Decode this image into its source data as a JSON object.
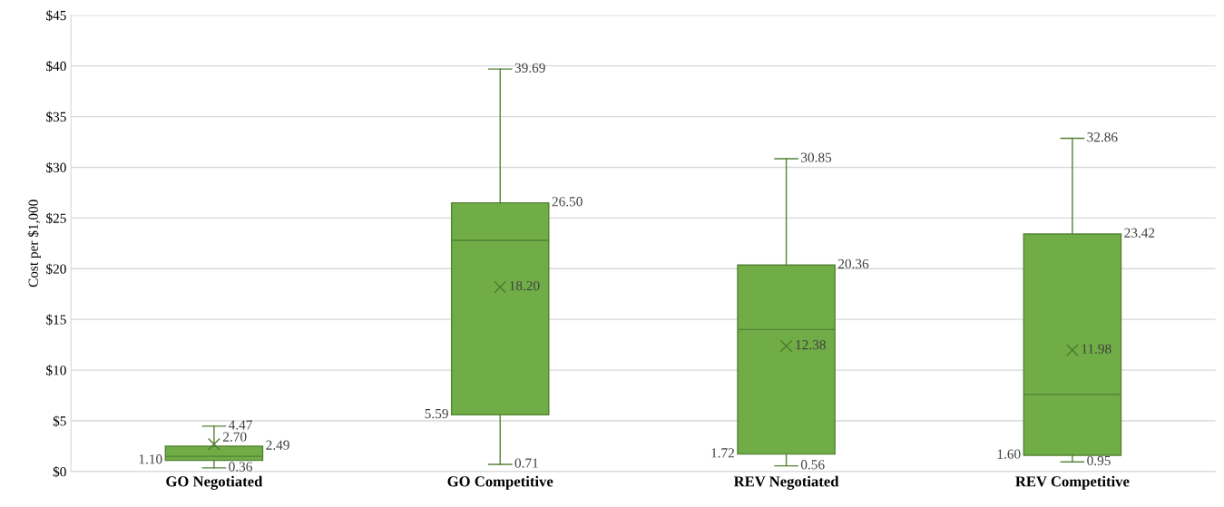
{
  "chart_data": {
    "type": "box",
    "ylabel": "Cost per $1,000",
    "categories": [
      "GO Negotiated",
      "GO Competitive",
      "REV Negotiated",
      "REV Competitive"
    ],
    "boxes": [
      {
        "low": 0.36,
        "q1": 1.1,
        "median": 1.5,
        "q3": 2.49,
        "high": 4.47,
        "mean": 2.7
      },
      {
        "low": 0.71,
        "q1": 5.59,
        "median": 22.8,
        "q3": 26.5,
        "high": 39.69,
        "mean": 18.2
      },
      {
        "low": 0.56,
        "q1": 1.72,
        "median": 14.0,
        "q3": 20.36,
        "high": 30.85,
        "mean": 12.38
      },
      {
        "low": 0.95,
        "q1": 1.6,
        "median": 7.6,
        "q3": 23.42,
        "high": 32.86,
        "mean": 11.98
      }
    ],
    "color": "#70ad47",
    "grid": "y",
    "annotations": [
      "4.47",
      "2.49",
      "2.70",
      "1.10",
      "0.36",
      "39.69",
      "26.50",
      "18.20",
      "5.59",
      "0.71",
      "30.85",
      "20.36",
      "12.38",
      "1.72",
      "0.56",
      "32.86",
      "23.42",
      "11.98",
      "1.60",
      "0.95"
    ],
    "ylim": [
      0,
      45
    ],
    "yticks": [
      {
        "value": 0,
        "label": "$0"
      },
      {
        "value": 5,
        "label": "$5"
      },
      {
        "value": 10,
        "label": "$10"
      },
      {
        "value": 15,
        "label": "$15"
      },
      {
        "value": 20,
        "label": "$20"
      },
      {
        "value": 25,
        "label": "$25"
      },
      {
        "value": 30,
        "label": "$30"
      },
      {
        "value": 35,
        "label": "$35"
      },
      {
        "value": 40,
        "label": "$40"
      },
      {
        "value": 45,
        "label": "$45"
      }
    ]
  }
}
